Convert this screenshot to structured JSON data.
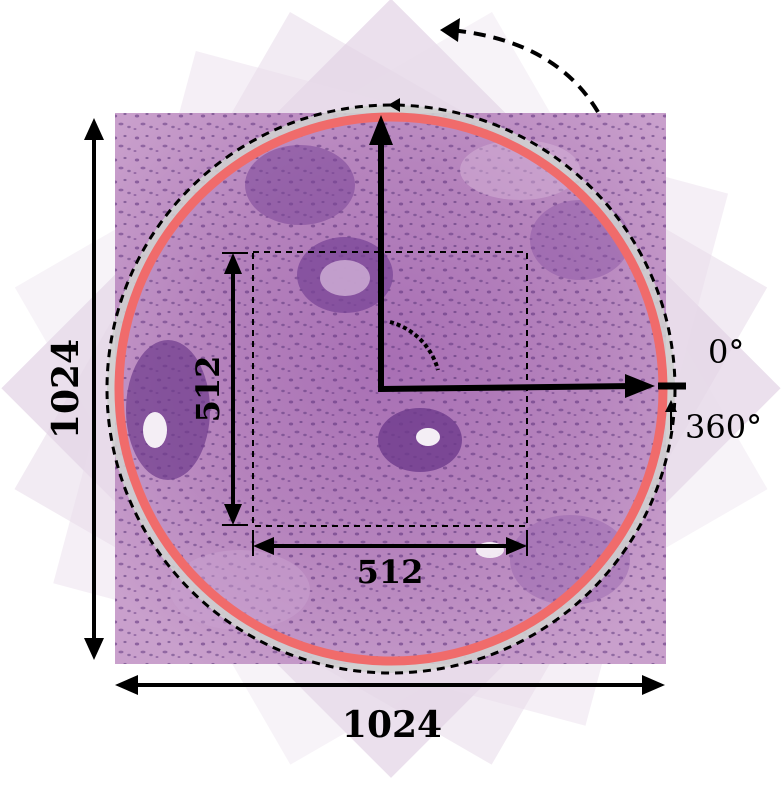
{
  "labels": {
    "outer_width": "1024",
    "outer_height": "1024",
    "inner_width": "512",
    "inner_height": "512",
    "angle_start": "0°",
    "angle_end": "360°"
  },
  "colors": {
    "tissue_base": "#b07ab8",
    "tissue_light": "#d9b8da",
    "nuclei": "#4b2a6e",
    "ring_red": "#f06b6b",
    "ring_gray": "#cfcfcf"
  }
}
